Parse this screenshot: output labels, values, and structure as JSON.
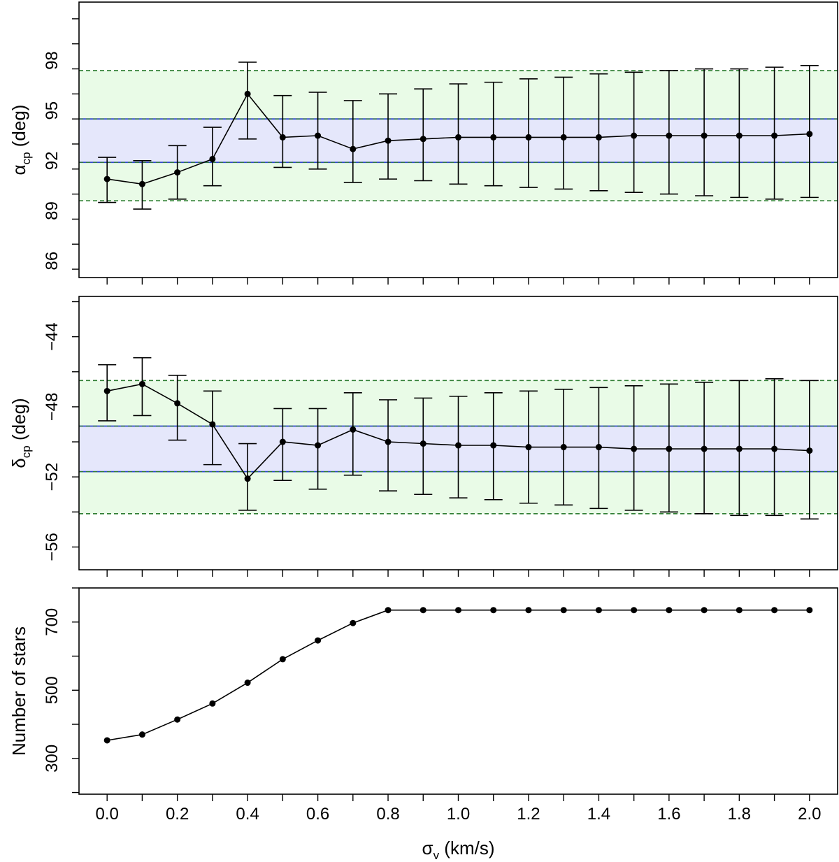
{
  "chart_data": [
    {
      "type": "line",
      "panel": "top",
      "ylabel": {
        "symbol": "α",
        "sub": "cp",
        "unit": " (deg)"
      },
      "ylim": [
        85,
        101.5
      ],
      "yticks": [
        86,
        89,
        92,
        95,
        98
      ],
      "ytick_labels": [
        "86",
        "89",
        "92",
        "95",
        "98"
      ],
      "x": [
        0.0,
        0.1,
        0.2,
        0.3,
        0.4,
        0.5,
        0.6,
        0.7,
        0.8,
        0.9,
        1.0,
        1.1,
        1.2,
        1.3,
        1.4,
        1.5,
        1.6,
        1.7,
        1.8,
        1.9,
        2.0
      ],
      "values": [
        90.9,
        90.6,
        91.3,
        92.1,
        96.0,
        93.4,
        93.5,
        92.7,
        93.2,
        93.3,
        93.4,
        93.4,
        93.4,
        93.4,
        93.4,
        93.5,
        93.5,
        93.5,
        93.5,
        93.5,
        93.6
      ],
      "err_low": [
        89.5,
        89.1,
        89.7,
        90.5,
        93.3,
        91.6,
        91.5,
        90.7,
        90.9,
        90.8,
        90.6,
        90.5,
        90.4,
        90.3,
        90.2,
        90.1,
        90.0,
        89.9,
        89.8,
        89.7,
        89.8
      ],
      "err_high": [
        92.2,
        92.0,
        92.9,
        94.0,
        97.9,
        95.9,
        96.1,
        95.6,
        96.0,
        96.3,
        96.6,
        96.7,
        96.9,
        97.0,
        97.2,
        97.3,
        97.4,
        97.5,
        97.5,
        97.6,
        97.7
      ],
      "band_inner": [
        91.9,
        94.5
      ],
      "band_outer": [
        89.6,
        97.4
      ],
      "colors": {
        "inner": "#e5e7fb",
        "outer": "#e9fbe7",
        "inner_line": "#2f46c8",
        "outer_line": "#2e7d32"
      }
    },
    {
      "type": "line",
      "panel": "middle",
      "ylabel": {
        "symbol": "δ",
        "sub": "cp",
        "unit": " (deg)"
      },
      "ylim": [
        -57.3,
        -41.7
      ],
      "yticks": [
        -56,
        -52,
        -48,
        -44
      ],
      "ytick_labels": [
        "−56",
        "−52",
        "−48",
        "−44"
      ],
      "x": [
        0.0,
        0.1,
        0.2,
        0.3,
        0.4,
        0.5,
        0.6,
        0.7,
        0.8,
        0.9,
        1.0,
        1.1,
        1.2,
        1.3,
        1.4,
        1.5,
        1.6,
        1.7,
        1.8,
        1.9,
        2.0
      ],
      "values": [
        -47.1,
        -46.7,
        -47.8,
        -49.0,
        -52.1,
        -50.0,
        -50.2,
        -49.3,
        -50.0,
        -50.1,
        -50.2,
        -50.2,
        -50.3,
        -50.3,
        -50.3,
        -50.4,
        -50.4,
        -50.4,
        -50.4,
        -50.4,
        -50.5
      ],
      "err_low": [
        -48.8,
        -48.5,
        -49.9,
        -51.3,
        -53.9,
        -52.2,
        -52.7,
        -51.9,
        -52.8,
        -53.0,
        -53.2,
        -53.3,
        -53.5,
        -53.6,
        -53.8,
        -53.9,
        -54.0,
        -54.1,
        -54.2,
        -54.2,
        -54.4
      ],
      "err_high": [
        -45.6,
        -45.2,
        -46.2,
        -47.1,
        -50.1,
        -48.1,
        -48.1,
        -47.2,
        -47.6,
        -47.5,
        -47.4,
        -47.2,
        -47.1,
        -47.0,
        -46.9,
        -46.8,
        -46.7,
        -46.6,
        -46.5,
        -46.4,
        -46.5
      ],
      "band_inner": [
        -51.7,
        -49.1
      ],
      "band_outer": [
        -54.1,
        -46.5
      ],
      "colors": {
        "inner": "#e5e7fb",
        "outer": "#e9fbe7",
        "inner_line": "#2f46c8",
        "outer_line": "#2e7d32"
      }
    },
    {
      "type": "line",
      "panel": "bottom",
      "ylabel": {
        "text": "Number of stars"
      },
      "ylim": [
        195,
        800
      ],
      "yticks": [
        300,
        500,
        700
      ],
      "ytick_labels": [
        "300",
        "500",
        "700"
      ],
      "x": [
        0.0,
        0.1,
        0.2,
        0.3,
        0.4,
        0.5,
        0.6,
        0.7,
        0.8,
        0.9,
        1.0,
        1.1,
        1.2,
        1.3,
        1.4,
        1.5,
        1.6,
        1.7,
        1.8,
        1.9,
        2.0
      ],
      "values": [
        353,
        370,
        414,
        461,
        522,
        591,
        646,
        697,
        735,
        735,
        735,
        735,
        735,
        735,
        735,
        735,
        735,
        735,
        735,
        735,
        735
      ],
      "xlabel": {
        "symbol": "σ",
        "sub": "v",
        "unit": " (km/s)"
      },
      "xlim": [
        -0.08,
        2.08
      ],
      "xticks": [
        0.0,
        0.2,
        0.4,
        0.6,
        0.8,
        1.0,
        1.2,
        1.4,
        1.6,
        1.8,
        2.0
      ],
      "xtick_labels": [
        "0.0",
        "0.2",
        "0.4",
        "0.6",
        "0.8",
        "1.0",
        "1.2",
        "1.4",
        "1.6",
        "1.8",
        "2.0"
      ]
    }
  ]
}
